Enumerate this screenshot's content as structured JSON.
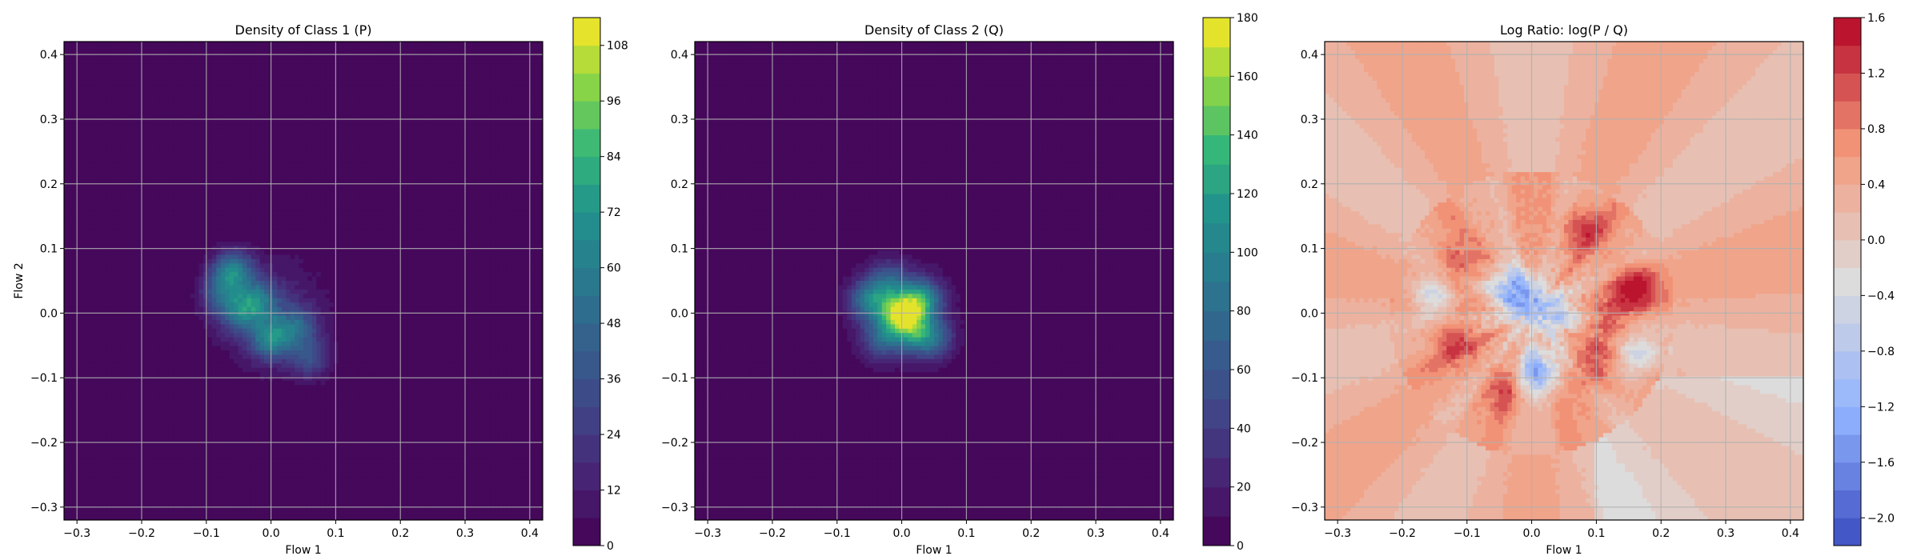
{
  "chart_data": [
    {
      "type": "heatmap",
      "title": "Density of Class 1 (P)",
      "xlabel": "Flow 1",
      "ylabel": "Flow 2",
      "xlim": [
        -0.32,
        0.42
      ],
      "ylim": [
        -0.32,
        0.42
      ],
      "xticks": [
        "-0.3",
        "-0.2",
        "-0.1",
        "0.0",
        "0.1",
        "0.2",
        "0.3",
        "0.4"
      ],
      "yticks": [
        "-0.3",
        "-0.2",
        "-0.1",
        "0.0",
        "0.1",
        "0.2",
        "0.3",
        "0.4"
      ],
      "grid": true,
      "colormap": "viridis",
      "colorbar": {
        "min": 0,
        "max": 114,
        "ticks": [
          "0",
          "12",
          "24",
          "36",
          "48",
          "60",
          "72",
          "84",
          "96",
          "108"
        ],
        "levels": 19
      },
      "blobs": [
        {
          "x": -0.06,
          "y": 0.065,
          "peak": 58
        },
        {
          "x": -0.02,
          "y": 0.02,
          "peak": 45
        },
        {
          "x": 0.0,
          "y": -0.04,
          "peak": 55
        },
        {
          "x": -0.05,
          "y": 0.0,
          "peak": 40
        },
        {
          "x": 0.04,
          "y": -0.02,
          "peak": 35
        },
        {
          "x": 0.06,
          "y": -0.07,
          "peak": 30
        },
        {
          "x": -0.08,
          "y": 0.03,
          "peak": 30
        }
      ]
    },
    {
      "type": "heatmap",
      "title": "Density of Class 2 (Q)",
      "xlabel": "Flow 1",
      "ylabel": "",
      "xlim": [
        -0.32,
        0.42
      ],
      "ylim": [
        -0.32,
        0.42
      ],
      "xticks": [
        "-0.3",
        "-0.2",
        "-0.1",
        "0.0",
        "0.1",
        "0.2",
        "0.3",
        "0.4"
      ],
      "yticks": [
        "-0.3",
        "-0.2",
        "-0.1",
        "0.0",
        "0.1",
        "0.2",
        "0.3",
        "0.4"
      ],
      "grid": true,
      "colormap": "viridis",
      "colorbar": {
        "min": 0,
        "max": 180,
        "ticks": [
          "0",
          "20",
          "40",
          "60",
          "80",
          "100",
          "120",
          "140",
          "160",
          "180"
        ],
        "levels": 18
      },
      "blobs": [
        {
          "x": -0.005,
          "y": 0.0,
          "peak": 125
        },
        {
          "x": 0.03,
          "y": 0.02,
          "peak": 110
        },
        {
          "x": -0.05,
          "y": 0.02,
          "peak": 80
        },
        {
          "x": 0.02,
          "y": -0.03,
          "peak": 80
        },
        {
          "x": -0.03,
          "y": -0.04,
          "peak": 60
        },
        {
          "x": 0.05,
          "y": -0.04,
          "peak": 55
        },
        {
          "x": -0.02,
          "y": 0.05,
          "peak": 55
        }
      ]
    },
    {
      "type": "heatmap",
      "title": "Log Ratio: log(P / Q)",
      "xlabel": "Flow 1",
      "ylabel": "",
      "xlim": [
        -0.32,
        0.42
      ],
      "ylim": [
        -0.32,
        0.42
      ],
      "xticks": [
        "-0.3",
        "-0.2",
        "-0.1",
        "0.0",
        "0.1",
        "0.2",
        "0.3",
        "0.4"
      ],
      "yticks": [
        "-0.3",
        "-0.2",
        "-0.1",
        "0.0",
        "0.1",
        "0.2",
        "0.3",
        "0.4"
      ],
      "grid": true,
      "colormap": "coolwarm",
      "colorbar": {
        "min": -2.2,
        "max": 1.6,
        "ticks": [
          "-2.0",
          "-1.6",
          "-1.2",
          "-0.8",
          "-0.4",
          "0.0",
          "0.4",
          "0.8",
          "1.2",
          "1.6"
        ],
        "levels": 19
      },
      "background_value": 0.45,
      "blobs": [
        {
          "x": 0.16,
          "y": 0.04,
          "value": 1.35
        },
        {
          "x": 0.08,
          "y": 0.13,
          "value": 1.1
        },
        {
          "x": -0.12,
          "y": 0.07,
          "value": 1.1
        },
        {
          "x": -0.12,
          "y": -0.04,
          "value": 1.1
        },
        {
          "x": 0.09,
          "y": -0.09,
          "value": 1.0
        },
        {
          "x": -0.04,
          "y": -0.12,
          "value": 0.9
        },
        {
          "x": 0.12,
          "y": -0.02,
          "value": 1.0
        },
        {
          "x": 0.01,
          "y": -0.09,
          "value": -1.35
        },
        {
          "x": -0.03,
          "y": 0.04,
          "value": -1.1
        },
        {
          "x": -0.15,
          "y": 0.03,
          "value": -0.9
        },
        {
          "x": 0.16,
          "y": -0.07,
          "value": -0.7
        },
        {
          "x": 0.04,
          "y": 0.0,
          "value": -0.8
        },
        {
          "x": -0.01,
          "y": 0.01,
          "value": -0.7
        }
      ]
    }
  ]
}
